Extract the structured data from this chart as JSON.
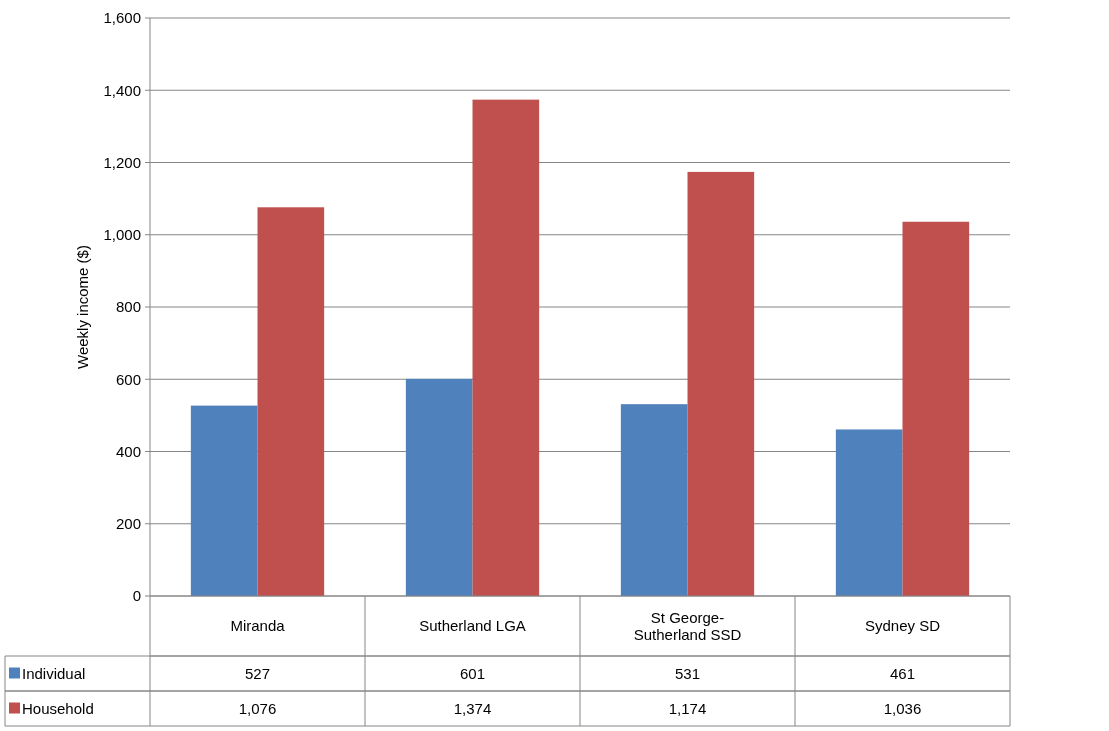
{
  "chart_data": {
    "type": "bar",
    "ylabel": "Weekly income ($)",
    "categories": [
      "Miranda",
      "Sutherland LGA",
      "St George-Sutherland SSD",
      "Sydney SD"
    ],
    "series": [
      {
        "name": "Individual",
        "color": "#4f81bd",
        "values": [
          527,
          601,
          531,
          461
        ],
        "value_labels": [
          "527",
          "601",
          "531",
          "461"
        ]
      },
      {
        "name": "Household",
        "color": "#c0504d",
        "values": [
          1076,
          1374,
          1174,
          1036
        ],
        "value_labels": [
          "1,076",
          "1,374",
          "1,174",
          "1,036"
        ]
      }
    ],
    "ylim": [
      0,
      1600
    ],
    "yticks": [
      0,
      {
        "value": 200,
        "label": "200"
      },
      {
        "value": 400,
        "label": "400"
      },
      {
        "value": 600,
        "label": "600"
      },
      {
        "value": 800,
        "label": "800"
      },
      {
        "value": 1000,
        "label": "1,000"
      },
      {
        "value": 1200,
        "label": "1,200"
      },
      {
        "value": 1400,
        "label": "1,400"
      },
      {
        "value": 1600,
        "label": "1,600"
      }
    ],
    "grid": "y",
    "legend": "bottom"
  }
}
